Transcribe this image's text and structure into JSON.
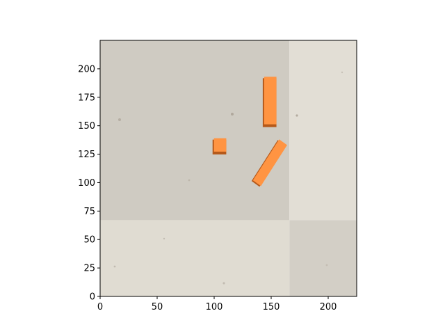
{
  "chart_data": {
    "type": "image",
    "title": "",
    "xlabel": "",
    "ylabel": "",
    "xlim": [
      0,
      225
    ],
    "ylim": [
      0,
      225
    ],
    "xticks": [
      0,
      50,
      100,
      150,
      200
    ],
    "yticks": [
      0,
      25,
      50,
      75,
      100,
      125,
      150,
      175,
      200
    ],
    "grid": false,
    "legend": "none",
    "background": {
      "description": "concrete floor texture, 2x2 tiles",
      "tiles": [
        {
          "name": "top-left",
          "x": [
            0,
            166
          ],
          "y": [
            67,
            225
          ],
          "color": "#cfcbc2"
        },
        {
          "name": "top-right",
          "x": [
            166,
            225
          ],
          "y": [
            67,
            225
          ],
          "color": "#e2ded5"
        },
        {
          "name": "bottom-left",
          "x": [
            0,
            166
          ],
          "y": [
            0,
            67
          ],
          "color": "#e0dcd2"
        },
        {
          "name": "bottom-right",
          "x": [
            166,
            225
          ],
          "y": [
            0,
            67
          ],
          "color": "#d3cfc6"
        }
      ]
    },
    "objects": [
      {
        "name": "square-block",
        "shape": "rect",
        "x": [
          98,
          110
        ],
        "y": [
          126,
          139
        ],
        "color": "#ff9442",
        "shadow": "#b5591a"
      },
      {
        "name": "upright-block",
        "shape": "rect",
        "x": [
          142,
          154
        ],
        "y": [
          150,
          193
        ],
        "color": "#ff9442",
        "shadow": "#b5591a"
      },
      {
        "name": "tilted-block",
        "shape": "polygon",
        "points": [
          [
            134,
            102
          ],
          [
            141,
            97
          ],
          [
            164,
            133
          ],
          [
            157,
            138
          ]
        ],
        "color": "#ff9442",
        "shadow": "#b5591a"
      }
    ]
  }
}
